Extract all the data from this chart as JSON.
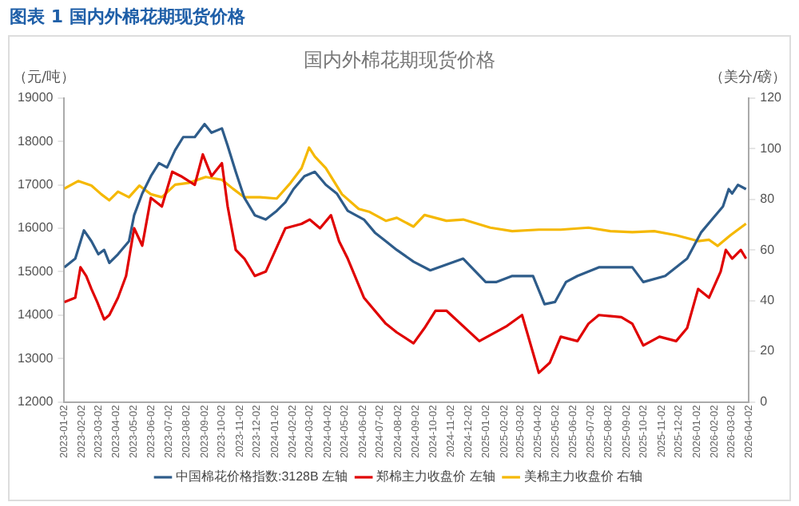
{
  "chart_data": {
    "type": "line",
    "title": "图表 1 国内外棉花期现货价格",
    "subtitle": "国内外棉花期现货价格",
    "ylabel": "（元/吨）",
    "y2label": "（美分/磅）",
    "xlim": [
      "2023-01-02",
      "2026-04-02"
    ],
    "xticks": [
      "2023-01-02",
      "2023-02-02",
      "2023-03-02",
      "2023-04-02",
      "2023-05-02",
      "2023-06-02",
      "2023-07-02",
      "2023-08-02",
      "2023-09-02",
      "2023-10-02",
      "2023-11-02",
      "2023-12-02",
      "2024-01-02",
      "2024-02-02",
      "2024-03-02",
      "2024-04-02",
      "2024-05-02",
      "2024-06-02",
      "2024-07-02",
      "2024-08-02",
      "2024-09-02",
      "2024-10-02",
      "2024-11-02",
      "2024-12-02",
      "2025-01-02",
      "2025-02-02",
      "2025-03-02",
      "2025-04-02",
      "2025-05-02",
      "2025-06-02",
      "2025-07-02",
      "2025-08-02",
      "2025-09-02",
      "2025-10-02",
      "2025-11-02",
      "2025-12-02",
      "2026-01-02",
      "2026-02-02",
      "2026-03-02",
      "2026-04-02"
    ],
    "ylim": [
      12000,
      19000
    ],
    "yticks": [
      12000,
      13000,
      14000,
      15000,
      16000,
      17000,
      18000,
      19000
    ],
    "y2lim": [
      0,
      120
    ],
    "y2ticks": [
      0,
      20,
      40,
      60,
      80,
      100,
      120
    ],
    "grid": false,
    "legend": "bottom",
    "marker": "none",
    "line_style": "solid",
    "series": [
      {
        "name": "中国棉花价格指数:3128B 左轴",
        "color": "#2e5c8a",
        "x": [
          "2023-01-02",
          "2023-01-21",
          "2023-02-05",
          "2023-02-18",
          "2023-03-02",
          "2023-03-12",
          "2023-03-21",
          "2023-04-05",
          "2023-04-24",
          "2023-05-03",
          "2023-05-17",
          "2023-06-01",
          "2023-06-15",
          "2023-06-29",
          "2023-07-13",
          "2023-07-27",
          "2023-08-16",
          "2023-09-02",
          "2023-09-14",
          "2023-10-02",
          "2023-10-12",
          "2023-10-26",
          "2023-11-10",
          "2023-11-28",
          "2023-12-17",
          "2024-01-05",
          "2024-01-20",
          "2024-02-03",
          "2024-02-22",
          "2024-03-11",
          "2024-03-30",
          "2024-04-18",
          "2024-05-07",
          "2024-06-04",
          "2024-06-23",
          "2024-07-12",
          "2024-07-31",
          "2024-08-29",
          "2024-09-27",
          "2024-11-23",
          "2025-01-01",
          "2025-01-19",
          "2025-02-16",
          "2025-03-24",
          "2025-04-13",
          "2025-05-01",
          "2025-05-20",
          "2025-06-09",
          "2025-07-16",
          "2025-09-12",
          "2025-10-01",
          "2025-11-08",
          "2025-12-16",
          "2026-01-09",
          "2026-01-28",
          "2026-02-16",
          "2026-02-26",
          "2026-03-04",
          "2026-03-14",
          "2026-03-28"
        ],
        "values": [
          15100,
          15300,
          15950,
          15700,
          15400,
          15500,
          15200,
          15400,
          15700,
          16300,
          16800,
          17200,
          17500,
          17400,
          17800,
          18100,
          18100,
          18400,
          18200,
          18300,
          17900,
          17300,
          16700,
          16300,
          16200,
          16400,
          16600,
          16900,
          17200,
          17300,
          17000,
          16800,
          16400,
          16200,
          15900,
          15700,
          15500,
          15230,
          15030,
          15300,
          14760,
          14760,
          14900,
          14900,
          14250,
          14300,
          14760,
          14900,
          15100,
          15100,
          14760,
          14900,
          15300,
          15900,
          16200,
          16500,
          16900,
          16800,
          17000,
          16900
        ]
      },
      {
        "name": "郑棉主力收盘价 左轴",
        "color": "#e00000",
        "x": [
          "2023-01-02",
          "2023-01-21",
          "2023-01-30",
          "2023-02-09",
          "2023-02-18",
          "2023-02-28",
          "2023-03-12",
          "2023-03-21",
          "2023-04-05",
          "2023-04-19",
          "2023-05-03",
          "2023-05-17",
          "2023-06-01",
          "2023-06-20",
          "2023-07-08",
          "2023-07-23",
          "2023-08-16",
          "2023-08-30",
          "2023-09-14",
          "2023-10-02",
          "2023-10-12",
          "2023-10-26",
          "2023-11-10",
          "2023-11-28",
          "2023-12-17",
          "2024-01-20",
          "2024-02-17",
          "2024-03-02",
          "2024-03-20",
          "2024-04-08",
          "2024-04-22",
          "2024-05-07",
          "2024-06-04",
          "2024-07-12",
          "2024-07-31",
          "2024-08-29",
          "2024-09-17",
          "2024-10-06",
          "2024-10-25",
          "2024-12-21",
          "2025-02-07",
          "2025-03-05",
          "2025-04-03",
          "2025-04-22",
          "2025-05-11",
          "2025-06-09",
          "2025-06-28",
          "2025-07-16",
          "2025-08-24",
          "2025-09-12",
          "2025-10-01",
          "2025-10-29",
          "2025-11-27",
          "2025-12-16",
          "2026-01-04",
          "2026-01-23",
          "2026-02-12",
          "2026-02-21",
          "2026-03-04",
          "2026-03-19",
          "2026-03-28"
        ],
        "values": [
          14300,
          14400,
          15100,
          14900,
          14600,
          14300,
          13900,
          14000,
          14400,
          14900,
          16000,
          15600,
          16700,
          16500,
          17300,
          17200,
          17000,
          17700,
          17200,
          17500,
          16500,
          15500,
          15300,
          14900,
          15000,
          16000,
          16100,
          16200,
          16000,
          16300,
          15700,
          15300,
          14400,
          13800,
          13600,
          13350,
          13700,
          14100,
          14100,
          13400,
          13750,
          14000,
          12670,
          12900,
          13500,
          13400,
          13800,
          14000,
          13950,
          13800,
          13300,
          13500,
          13400,
          13700,
          14600,
          14400,
          15000,
          15500,
          15300,
          15500,
          15300
        ]
      },
      {
        "name": "美棉主力收盘价 右轴",
        "color": "#f5b800",
        "axis": "y2",
        "x": [
          "2023-01-02",
          "2023-01-26",
          "2023-02-18",
          "2023-03-07",
          "2023-03-21",
          "2023-04-05",
          "2023-04-24",
          "2023-05-12",
          "2023-06-01",
          "2023-06-20",
          "2023-07-13",
          "2023-08-06",
          "2023-09-04",
          "2023-10-02",
          "2023-10-21",
          "2023-11-10",
          "2023-12-07",
          "2024-01-05",
          "2024-01-29",
          "2024-02-17",
          "2024-03-01",
          "2024-03-11",
          "2024-03-30",
          "2024-04-27",
          "2024-05-26",
          "2024-06-14",
          "2024-07-12",
          "2024-07-31",
          "2024-08-29",
          "2024-09-17",
          "2024-10-25",
          "2024-11-23",
          "2025-01-09",
          "2025-02-16",
          "2025-04-03",
          "2025-05-11",
          "2025-06-28",
          "2025-08-05",
          "2025-09-12",
          "2025-10-20",
          "2025-11-27",
          "2026-01-04",
          "2026-01-23",
          "2026-02-07",
          "2026-03-01",
          "2026-03-28"
        ],
        "values": [
          84.2,
          87.2,
          85.4,
          82,
          79.6,
          83,
          80.8,
          85.4,
          82,
          80.8,
          85.8,
          86.5,
          88.8,
          87.7,
          84.2,
          80.8,
          80.8,
          80.3,
          86.5,
          92.3,
          100.4,
          96.9,
          92.3,
          82,
          76.2,
          75,
          71.5,
          72.7,
          69.2,
          73.8,
          71.5,
          72,
          68.8,
          67.4,
          68,
          68,
          68.8,
          67.4,
          67,
          67.4,
          65.8,
          63.5,
          64,
          61.6,
          65.8,
          70.4
        ]
      }
    ]
  }
}
